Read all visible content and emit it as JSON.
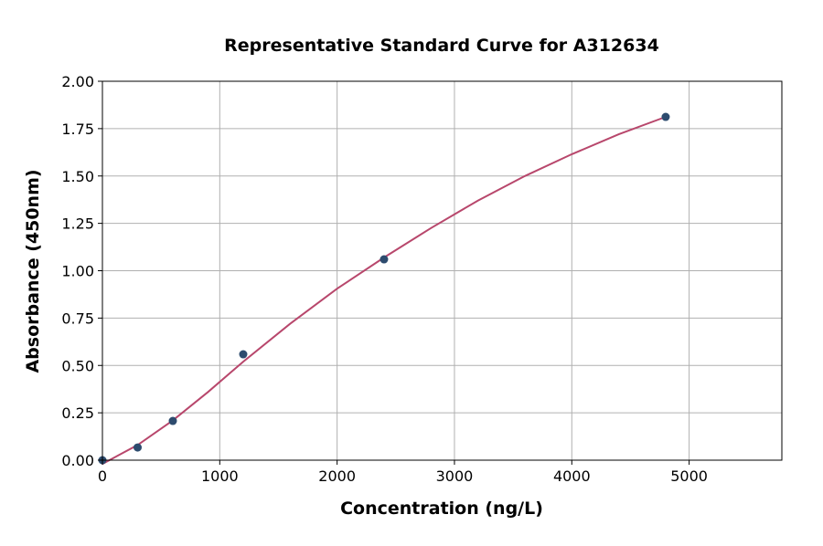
{
  "chart_data": {
    "type": "scatter",
    "title": "Representative Standard Curve for A312634",
    "xlabel": "Concentration (ng/L)",
    "ylabel": "Absorbance (450nm)",
    "xlim": [
      0,
      5790
    ],
    "ylim": [
      0,
      2.0
    ],
    "xticks": [
      0,
      1000,
      2000,
      3000,
      4000,
      5000
    ],
    "yticks": [
      "0.00",
      "0.25",
      "0.50",
      "0.75",
      "1.00",
      "1.25",
      "1.50",
      "1.75",
      "2.00"
    ],
    "grid": true,
    "points": {
      "x": [
        0,
        300,
        600,
        1200,
        2400,
        4800
      ],
      "y": [
        0.0,
        0.067,
        0.207,
        0.559,
        1.06,
        1.812
      ]
    },
    "fit_curve": {
      "x": [
        0,
        300,
        600,
        900,
        1200,
        1600,
        2000,
        2400,
        2800,
        3200,
        3600,
        4000,
        4400,
        4800
      ],
      "y": [
        -0.02,
        0.08,
        0.21,
        0.36,
        0.52,
        0.72,
        0.905,
        1.07,
        1.225,
        1.37,
        1.5,
        1.615,
        1.72,
        1.812
      ]
    },
    "colors": {
      "points": "#2d4b6e",
      "curve": "#b8476c",
      "grid": "#b0b0b0"
    }
  }
}
